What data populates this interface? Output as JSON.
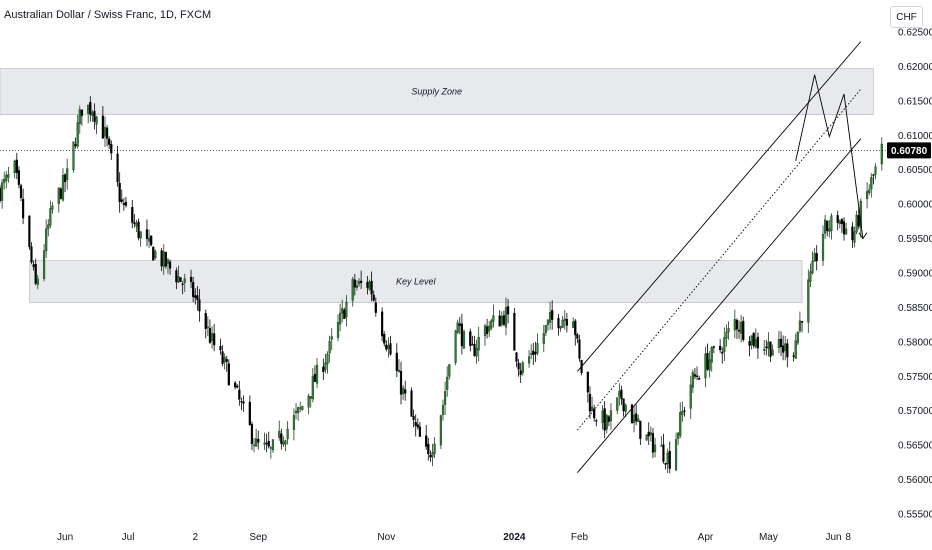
{
  "title": "Australian Dollar / Swiss Franc, 1D, FXCM",
  "currency_button": "CHF",
  "colors": {
    "up_candle": "#1f3d1f",
    "up_candle_fill": "#2e7d32",
    "down_candle": "#000000",
    "zone_fill": "#e8e9ec",
    "zone_border": "#b2b5be",
    "price_tag_bg": "#000000",
    "trend_line": "#000000",
    "projection_line": "#000000"
  },
  "chart_data": {
    "type": "candlestick",
    "title": "Australian Dollar / Swiss Franc, 1D, FXCM",
    "x_tick_labels": [
      "Jun",
      "Jul",
      "2",
      "Sep",
      "Nov",
      "2024",
      "Feb",
      "Apr",
      "May",
      "Jun",
      "8"
    ],
    "y_tick_labels": [
      "0.62500",
      "0.62000",
      "0.61500",
      "0.61000",
      "0.60500",
      "0.60000",
      "0.59500",
      "0.59000",
      "0.58500",
      "0.58000",
      "0.57500",
      "0.57000",
      "0.56500",
      "0.56000",
      "0.55500"
    ],
    "ylim": [
      0.555,
      0.625
    ],
    "grid": false,
    "last_price": "0.60780",
    "last_price_value": 0.6078,
    "zones": [
      {
        "label": "Supply Zone",
        "low": 0.613,
        "high": 0.6197,
        "from": "2023-05-01",
        "to": "2024-06-20"
      },
      {
        "label": "Key Level",
        "low": 0.5857,
        "high": 0.5918,
        "from": "2023-05-15",
        "to": "2024-05-17"
      }
    ],
    "channel": {
      "start_date": "2024-01-31",
      "end_date": "2024-06-14",
      "upper_start": 0.5757,
      "upper_end": 0.6236,
      "middle_start": 0.5672,
      "middle_end": 0.6167,
      "lower_start": 0.561,
      "lower_end": 0.6095
    },
    "projection": [
      [
        "2024-05-14",
        0.6063
      ],
      [
        "2024-05-23",
        0.6188
      ],
      [
        "2024-05-30",
        0.6098
      ],
      [
        "2024-06-06",
        0.616
      ],
      [
        "2024-06-15",
        0.595
      ]
    ],
    "series": [
      {
        "name": "AUDCHF",
        "close_path": [
          [
            "2023-05-01",
            0.602
          ],
          [
            "2023-05-08",
            0.605
          ],
          [
            "2023-05-18",
            0.588
          ],
          [
            "2023-05-26",
            0.5995
          ],
          [
            "2023-06-02",
            0.604
          ],
          [
            "2023-06-09",
            0.614
          ],
          [
            "2023-06-14",
            0.614
          ],
          [
            "2023-06-20",
            0.61
          ],
          [
            "2023-06-28",
            0.6
          ],
          [
            "2023-07-10",
            0.594
          ],
          [
            "2023-07-20",
            0.591
          ],
          [
            "2023-08-01",
            0.587
          ],
          [
            "2023-08-10",
            0.58
          ],
          [
            "2023-08-17",
            0.576
          ],
          [
            "2023-08-31",
            0.565
          ],
          [
            "2023-09-07",
            0.564
          ],
          [
            "2023-09-21",
            0.57
          ],
          [
            "2023-10-05",
            0.579
          ],
          [
            "2023-10-16",
            0.588
          ],
          [
            "2023-10-24",
            0.5885
          ],
          [
            "2023-10-31",
            0.581
          ],
          [
            "2023-11-14",
            0.568
          ],
          [
            "2023-11-21",
            0.563
          ],
          [
            "2023-11-28",
            0.571
          ],
          [
            "2023-12-04",
            0.583
          ],
          [
            "2023-12-11",
            0.578
          ],
          [
            "2023-12-18",
            0.582
          ],
          [
            "2023-12-28",
            0.584
          ],
          [
            "2024-01-04",
            0.576
          ],
          [
            "2024-01-11",
            0.579
          ],
          [
            "2024-01-18",
            0.583
          ],
          [
            "2024-01-29",
            0.584
          ],
          [
            "2024-02-01",
            0.577
          ],
          [
            "2024-02-07",
            0.57
          ],
          [
            "2024-02-14",
            0.568
          ],
          [
            "2024-02-21",
            0.572
          ],
          [
            "2024-02-28",
            0.568
          ],
          [
            "2024-03-04",
            0.566
          ],
          [
            "2024-03-12",
            0.564
          ],
          [
            "2024-03-15",
            0.563
          ],
          [
            "2024-03-25",
            0.574
          ],
          [
            "2024-04-01",
            0.577
          ],
          [
            "2024-04-08",
            0.579
          ],
          [
            "2024-04-15",
            0.583
          ],
          [
            "2024-04-25",
            0.58
          ],
          [
            "2024-05-06",
            0.579
          ],
          [
            "2024-05-13",
            0.579
          ],
          [
            "2024-05-20",
            0.588
          ],
          [
            "2024-05-27",
            0.596
          ],
          [
            "2024-06-03",
            0.598
          ],
          [
            "2024-06-10",
            0.595
          ],
          [
            "2024-06-14",
            0.599
          ],
          [
            "2024-06-20",
            0.604
          ],
          [
            "2024-06-24",
            0.6078
          ]
        ]
      }
    ]
  }
}
